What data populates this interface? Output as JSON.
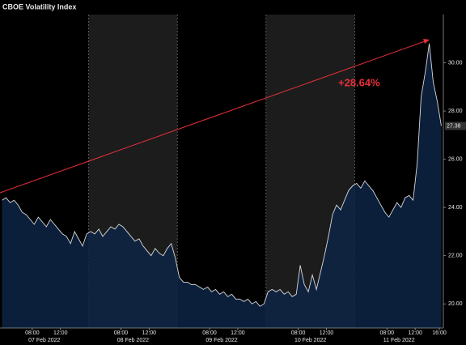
{
  "chart_data": {
    "type": "line",
    "title": "CBOE Volatility Index",
    "annotation": "+28.64%",
    "days": [
      "07 Feb 2022",
      "08 Feb 2022",
      "09 Feb 2022",
      "10 Feb 2022",
      "11 Feb 2022"
    ],
    "series": [
      {
        "name": "CBOE Volatility Index",
        "color": "#d9d9d9",
        "fill": "#0d2545",
        "values": [
          24.3,
          24.4,
          24.2,
          24.3,
          24.1,
          23.8,
          23.7,
          23.5,
          23.3,
          23.6,
          23.4,
          23.2,
          23.5,
          23.3,
          23.1,
          22.9,
          22.8,
          22.5,
          23.0,
          22.7,
          22.4,
          22.9,
          23.0,
          22.9,
          23.1,
          22.8,
          23.0,
          23.2,
          23.1,
          23.3,
          23.2,
          23.0,
          22.8,
          22.6,
          22.7,
          22.4,
          22.2,
          22.0,
          22.3,
          22.1,
          22.0,
          22.3,
          22.5,
          21.9,
          21.1,
          20.9,
          20.9,
          20.8,
          20.8,
          20.7,
          20.6,
          20.7,
          20.5,
          20.6,
          20.4,
          20.5,
          20.3,
          20.4,
          20.2,
          20.2,
          20.1,
          20.2,
          20.0,
          20.1,
          19.9,
          20.0,
          20.5,
          20.6,
          20.5,
          20.6,
          20.4,
          20.5,
          20.3,
          20.4,
          21.6,
          20.8,
          20.5,
          21.2,
          20.6,
          21.3,
          22.0,
          22.8,
          23.7,
          24.1,
          23.9,
          24.3,
          24.7,
          24.9,
          25.0,
          24.8,
          25.1,
          24.9,
          24.7,
          24.4,
          24.1,
          23.8,
          23.6,
          23.9,
          24.2,
          24.0,
          24.4,
          24.5,
          24.3,
          25.8,
          28.6,
          29.6,
          30.8,
          29.2,
          28.4,
          27.38
        ]
      }
    ],
    "xlim": [
      -0.5,
      109.5
    ],
    "xticks": [
      {
        "value": 7.5,
        "label": "08:00"
      },
      {
        "value": 14.5,
        "label": "12:00"
      },
      {
        "value": 29.5,
        "label": "08:00"
      },
      {
        "value": 36.5,
        "label": "12:00"
      },
      {
        "value": 51.5,
        "label": "08:00"
      },
      {
        "value": 58.5,
        "label": "12:00"
      },
      {
        "value": 73.5,
        "label": "08:00"
      },
      {
        "value": 80.5,
        "label": "12:00"
      },
      {
        "value": 95.5,
        "label": "08:00"
      },
      {
        "value": 102.5,
        "label": "12:00"
      },
      {
        "value": 108.5,
        "label": "16:00"
      }
    ],
    "ylim": [
      19,
      32
    ],
    "yticks": [
      {
        "value": 20,
        "label": "20.00"
      },
      {
        "value": 22,
        "label": "22.00"
      },
      {
        "value": 24,
        "label": "24.00"
      },
      {
        "value": 26,
        "label": "26.00"
      },
      {
        "value": 28,
        "label": "28.00"
      },
      {
        "value": 30,
        "label": "30.00"
      }
    ],
    "annotation_color": "#e8303a"
  }
}
